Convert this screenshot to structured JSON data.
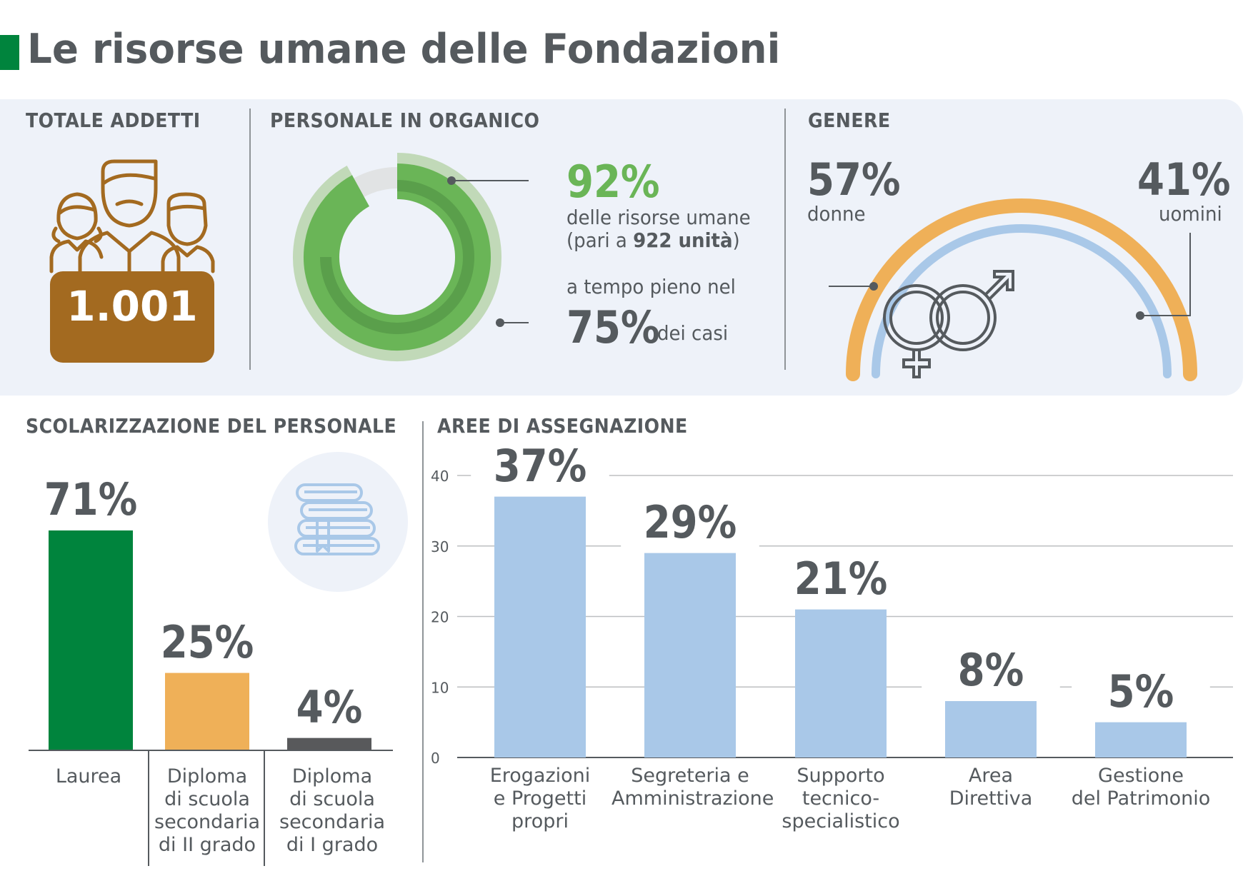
{
  "title": "Le risorse umane delle Fondazioni",
  "totale_addetti": {
    "heading": "TOTALE ADDETTI",
    "value": "1.001",
    "icon": "people-group-icon"
  },
  "personale": {
    "heading": "PERSONALE IN ORGANICO",
    "pct_organico": "92%",
    "line1": "delle risorse umane",
    "line2_pre": "(pari a ",
    "line2_bold": "922 unità",
    "line2_post": ")",
    "line3": "a tempo pieno nel",
    "pct_tempo_pieno": "75%",
    "dei_casi": "dei casi",
    "colors": {
      "organico": "#6ab557",
      "tempo_pieno": "#5a9f4b",
      "outer": "#c1d9b8",
      "track": "#e1e3e4"
    }
  },
  "genere": {
    "heading": "GENERE",
    "donne_pct": "57%",
    "donne_label": "donne",
    "uomini_pct": "41%",
    "uomini_label": "uomini",
    "colors": {
      "donne": "#efb058",
      "uomini": "#a9c8e8"
    },
    "icon": "gender-symbols-icon"
  },
  "scolarizzazione": {
    "heading": "SCOLARIZZAZIONE DEL PERSONALE",
    "icon": "books-icon"
  },
  "aree": {
    "heading": "AREE DI ASSEGNAZIONE"
  },
  "chart_data": [
    {
      "type": "bar",
      "title": "SCOLARIZZAZIONE DEL PERSONALE",
      "categories": [
        "Laurea",
        "Diploma\ndi scuola\nsecondaria\ndi II grado",
        "Diploma\ndi scuola\nsecondaria\ndi I grado"
      ],
      "values": [
        71,
        25,
        4
      ],
      "value_labels": [
        "71%",
        "25%",
        "4%"
      ],
      "colors": [
        "#00843d",
        "#efb058",
        "#58595b"
      ],
      "ylim": [
        0,
        71
      ],
      "grid": false
    },
    {
      "type": "bar",
      "title": "AREE DI ASSEGNAZIONE",
      "categories": [
        "Erogazioni\ne Progetti\npropri",
        "Segreteria e\nAmministrazione",
        "Supporto\ntecnico-\nspecialistico",
        "Area\nDirettiva",
        "Gestione\ndel Patrimonio"
      ],
      "values": [
        37,
        29,
        21,
        8,
        5
      ],
      "value_labels": [
        "37%",
        "29%",
        "21%",
        "8%",
        "5%"
      ],
      "yticks": [
        "0",
        "10",
        "20",
        "30",
        "40"
      ],
      "ylim": [
        0,
        40
      ],
      "grid": true,
      "bar_color": "#a9c8e8"
    }
  ]
}
